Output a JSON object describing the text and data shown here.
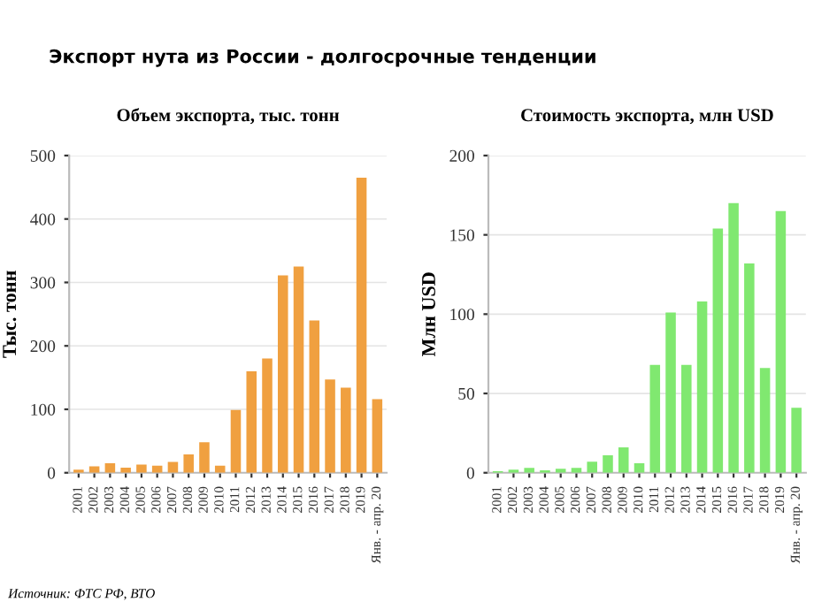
{
  "chart_data": [
    {
      "type": "bar",
      "title": "Объем экспорта, тыс. тонн",
      "ylabel": "Тыс. тонн",
      "categories": [
        "2001",
        "2002",
        "2003",
        "2004",
        "2005",
        "2006",
        "2007",
        "2008",
        "2009",
        "2010",
        "2011",
        "2012",
        "2013",
        "2014",
        "2015",
        "2016",
        "2017",
        "2018",
        "2019",
        "Янв. - апр. 20"
      ],
      "values": [
        5,
        10,
        15,
        8,
        13,
        11,
        17,
        29,
        48,
        11,
        99,
        160,
        180,
        311,
        325,
        240,
        147,
        134,
        465,
        116
      ],
      "color": "#f0a040",
      "ylim": [
        0,
        500
      ],
      "yticks": [
        0,
        100,
        200,
        300,
        400,
        500
      ],
      "grid": "y",
      "annotations": [
        "Экспорт нута из России - долгосрочные тенденции",
        "Источник: ФТС РФ, ВТО"
      ]
    },
    {
      "type": "bar",
      "title": "Стоимость экспорта, млн USD",
      "ylabel": "Млн USD",
      "categories": [
        "2001",
        "2002",
        "2003",
        "2004",
        "2005",
        "2006",
        "2007",
        "2008",
        "2009",
        "2010",
        "2011",
        "2012",
        "2013",
        "2014",
        "2015",
        "2016",
        "2017",
        "2018",
        "2019",
        "Янв. - апр. 20"
      ],
      "values": [
        1,
        2,
        3,
        1.5,
        2.5,
        3,
        7,
        11,
        16,
        6,
        68,
        101,
        68,
        108,
        154,
        170,
        132,
        66,
        165,
        41
      ],
      "color": "#80e870",
      "ylim": [
        0,
        200
      ],
      "yticks": [
        0,
        50,
        100,
        150,
        200
      ],
      "grid": "y"
    }
  ]
}
